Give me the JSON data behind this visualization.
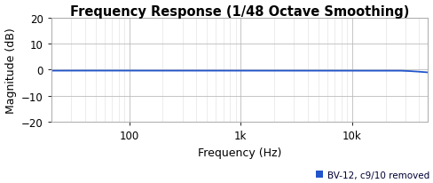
{
  "title": "Frequency Response (1/48 Octave Smoothing)",
  "xlabel": "Frequency (Hz)",
  "ylabel": "Magnitude (dB)",
  "ylim": [
    -20,
    20
  ],
  "xlim": [
    20,
    48000
  ],
  "yticks": [
    -20,
    -10,
    0,
    10,
    20
  ],
  "xtick_labels": [
    "100",
    "1k",
    "10k"
  ],
  "xtick_positions": [
    100,
    1000,
    10000
  ],
  "line_color": "#2255cc",
  "line_width": 1.3,
  "legend_label": "BV-12, c9/10 removed",
  "legend_color": "#2255cc",
  "legend_text_color": "#000033",
  "background_color": "#ffffff",
  "plot_bg_color": "#ffffff",
  "title_color": "#000000",
  "grid_major_color": "#bbbbbb",
  "grid_minor_color": "#dddddd",
  "title_fontsize": 10.5,
  "label_fontsize": 9,
  "tick_fontsize": 8.5,
  "legend_fontsize": 7.5
}
